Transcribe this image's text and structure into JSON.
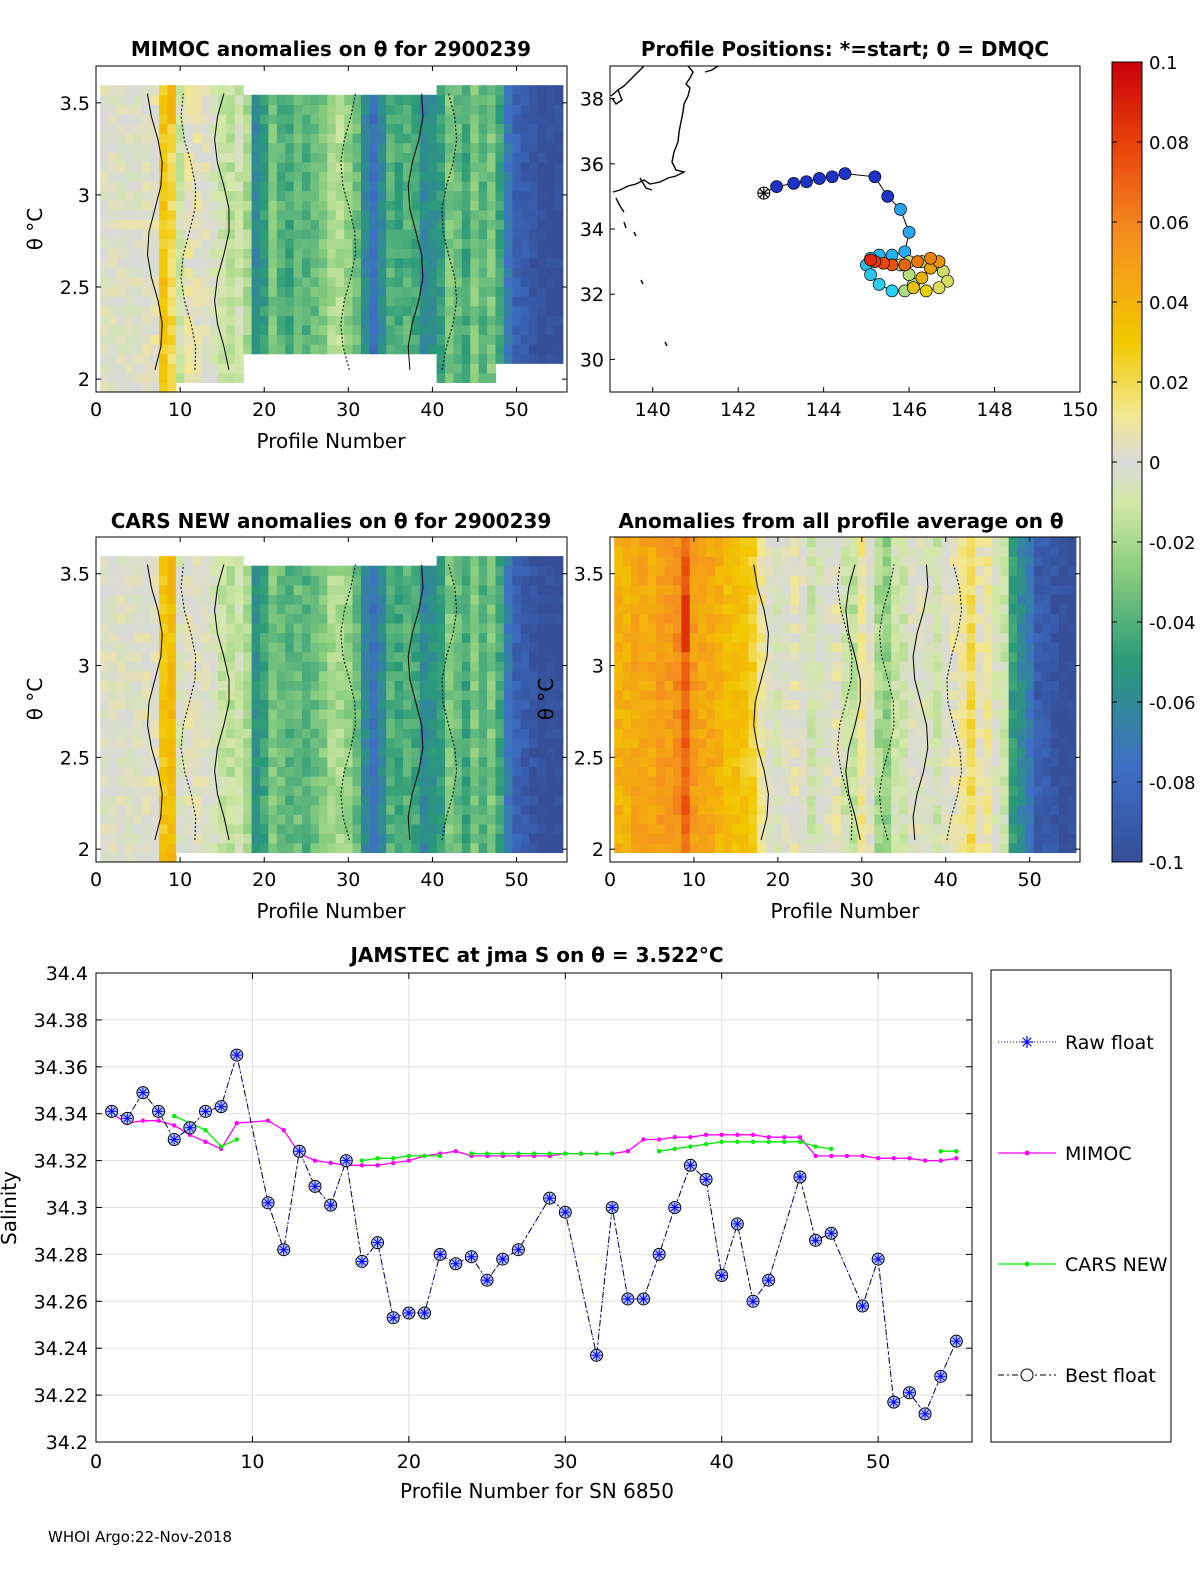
{
  "footer": "WHOI Argo:22-Nov-2018",
  "panels": {
    "mimoc": {
      "title": "MIMOC anomalies on θ  for 2900239",
      "xlabel": "Profile Number",
      "ylabel": "θ °C"
    },
    "positions": {
      "title": "Profile Positions: *=start; 0 = DMQC"
    },
    "cars": {
      "title": "CARS NEW anomalies on θ for 2900239",
      "xlabel": "Profile Number",
      "ylabel": "θ °C"
    },
    "allavg": {
      "title": "Anomalies from all profile average on θ",
      "xlabel": "Profile Number",
      "ylabel": "θ °C"
    }
  },
  "colors": {
    "raw": "#0000ff",
    "mimoc": "#ff00ff",
    "cars": "#00ee00",
    "best": "#000000",
    "marker_fill": "#b8c8ff"
  },
  "chart_data": [
    {
      "type": "heatmap",
      "name": "mimoc",
      "title": "MIMOC anomalies on θ  for 2900239",
      "xlabel": "Profile Number",
      "ylabel": "θ °C",
      "xlim": [
        0,
        56
      ],
      "ylim": [
        1.93,
        3.7
      ],
      "xticks": [
        "0",
        "10",
        "20",
        "30",
        "40",
        "50"
      ],
      "yticks": [
        "2",
        "2.5",
        "3",
        "3.5"
      ],
      "column_anomalies": [
        0,
        0,
        0,
        0,
        0,
        0.002,
        0.004,
        0.03,
        0.02,
        -0.01,
        0.006,
        0.004,
        0.002,
        -0.005,
        -0.012,
        -0.015,
        -0.01,
        -0.02,
        -0.06,
        -0.05,
        -0.03,
        -0.04,
        -0.045,
        -0.035,
        -0.04,
        -0.035,
        -0.03,
        -0.02,
        -0.018,
        -0.025,
        -0.035,
        -0.06,
        -0.075,
        -0.06,
        -0.04,
        -0.045,
        -0.04,
        -0.045,
        -0.06,
        -0.055,
        -0.05,
        -0.03,
        -0.035,
        -0.045,
        -0.03,
        -0.04,
        -0.03,
        -0.045,
        -0.07,
        -0.085,
        -0.09,
        -0.095,
        -0.1,
        -0.1,
        -0.1
      ]
    },
    {
      "type": "scatter",
      "name": "positions",
      "title": "Profile Positions: *=start; 0 = DMQC",
      "xlim": [
        139,
        150
      ],
      "ylim": [
        29,
        39
      ],
      "xticks": [
        "140",
        "142",
        "144",
        "146",
        "148",
        "150"
      ],
      "yticks": [
        "30",
        "32",
        "34",
        "36",
        "38"
      ],
      "start": [
        142.6,
        35.1
      ],
      "track": [
        [
          142.9,
          35.3
        ],
        [
          143.3,
          35.4
        ],
        [
          143.6,
          35.45
        ],
        [
          143.9,
          35.55
        ],
        [
          144.2,
          35.6
        ],
        [
          144.5,
          35.7
        ],
        [
          145.2,
          35.6
        ],
        [
          145.5,
          35.0
        ],
        [
          145.8,
          34.6
        ],
        [
          146.0,
          33.9
        ],
        [
          145.9,
          33.3
        ],
        [
          145.6,
          33.2
        ],
        [
          145.3,
          33.2
        ],
        [
          145.1,
          33.1
        ],
        [
          145.0,
          32.9
        ],
        [
          145.1,
          32.6
        ],
        [
          145.3,
          32.3
        ],
        [
          145.6,
          32.1
        ],
        [
          145.9,
          32.1
        ],
        [
          146.1,
          32.3
        ],
        [
          146.0,
          32.6
        ],
        [
          145.8,
          32.9
        ],
        [
          146.0,
          33.0
        ],
        [
          146.3,
          33.0
        ],
        [
          146.6,
          32.9
        ],
        [
          146.8,
          32.7
        ],
        [
          146.9,
          32.4
        ],
        [
          146.7,
          32.2
        ],
        [
          146.4,
          32.1
        ],
        [
          146.1,
          32.2
        ],
        [
          146.3,
          32.5
        ],
        [
          146.5,
          32.8
        ],
        [
          146.7,
          33.0
        ],
        [
          146.5,
          33.1
        ],
        [
          146.2,
          33.0
        ],
        [
          145.9,
          32.9
        ],
        [
          145.6,
          32.9
        ],
        [
          145.4,
          32.95
        ],
        [
          145.2,
          33.0
        ],
        [
          145.1,
          33.05
        ]
      ],
      "colorbar": {
        "min": -0.1,
        "max": 0.1,
        "ticks": [
          "0.1",
          "0.08",
          "0.06",
          "0.04",
          "0.02",
          "0",
          "-0.02",
          "-0.04",
          "-0.06",
          "-0.08",
          "-0.1"
        ]
      }
    },
    {
      "type": "heatmap",
      "name": "cars",
      "title": "CARS NEW anomalies on θ for 2900239",
      "xlabel": "Profile Number",
      "ylabel": "θ °C",
      "xlim": [
        0,
        56
      ],
      "ylim": [
        1.93,
        3.7
      ],
      "xticks": [
        "0",
        "10",
        "20",
        "30",
        "40",
        "50"
      ],
      "yticks": [
        "2",
        "2.5",
        "3",
        "3.5"
      ],
      "column_anomalies": [
        0,
        0,
        0,
        0,
        0,
        0.002,
        0.004,
        0.03,
        0.035,
        -0.005,
        0.003,
        0.002,
        0,
        -0.006,
        -0.012,
        -0.015,
        -0.01,
        -0.02,
        -0.055,
        -0.045,
        -0.03,
        -0.035,
        -0.04,
        -0.035,
        -0.04,
        -0.035,
        -0.03,
        -0.02,
        -0.02,
        -0.025,
        -0.035,
        -0.06,
        -0.075,
        -0.06,
        -0.04,
        -0.045,
        -0.04,
        -0.045,
        -0.06,
        -0.055,
        -0.05,
        -0.03,
        -0.035,
        -0.045,
        -0.03,
        -0.04,
        -0.03,
        -0.045,
        -0.07,
        -0.085,
        -0.09,
        -0.095,
        -0.1,
        -0.1,
        -0.1
      ]
    },
    {
      "type": "heatmap",
      "name": "allavg",
      "title": "Anomalies from all profile average on θ",
      "xlabel": "Profile Number",
      "ylabel": "θ °C",
      "xlim": [
        0,
        56
      ],
      "ylim": [
        1.93,
        3.7
      ],
      "xticks": [
        "0",
        "10",
        "20",
        "30",
        "40",
        "50"
      ],
      "yticks": [
        "2",
        "2.5",
        "3",
        "3.5"
      ],
      "column_anomalies": [
        0.04,
        0.04,
        0.045,
        0.045,
        0.045,
        0.05,
        0.05,
        0.055,
        0.07,
        0.05,
        0.045,
        0.045,
        0.04,
        0.035,
        0.035,
        0.03,
        0.025,
        0.01,
        0,
        -0.005,
        0,
        0.005,
        0,
        -0.01,
        -0.005,
        0,
        0.005,
        -0.01,
        -0.015,
        0.01,
        0,
        -0.02,
        -0.025,
        -0.01,
        -0.01,
        0,
        0,
        -0.005,
        -0.01,
        0,
        0.005,
        0.01,
        0.02,
        0.005,
        0.01,
        -0.005,
        -0.01,
        -0.05,
        -0.06,
        -0.07,
        -0.09,
        -0.09,
        -0.095,
        -0.1,
        -0.1
      ]
    },
    {
      "type": "line",
      "name": "salinity",
      "title": "JAMSTEC at jma S on θ = 3.522°C",
      "xlabel": "Profile Number for SN 6850",
      "ylabel": "Salinity",
      "xlim": [
        0,
        56
      ],
      "ylim": [
        34.2,
        34.4
      ],
      "xticks": [
        "0",
        "10",
        "20",
        "30",
        "40",
        "50"
      ],
      "yticks": [
        "34.2",
        "34.22",
        "34.24",
        "34.26",
        "34.28",
        "34.3",
        "34.32",
        "34.34",
        "34.36",
        "34.38",
        "34.4"
      ],
      "legend": [
        "Raw float",
        "MIMOC",
        "CARS NEW",
        "Best float"
      ],
      "series": [
        {
          "name": "Best float",
          "x": [
            1,
            2,
            3,
            4,
            5,
            6,
            7,
            8,
            9,
            11,
            12,
            13,
            14,
            15,
            16,
            17,
            18,
            19,
            20,
            21,
            22,
            23,
            24,
            25,
            26,
            27,
            29,
            30,
            32,
            33,
            34,
            35,
            36,
            37,
            38,
            39,
            40,
            41,
            42,
            43,
            45,
            46,
            47,
            49,
            50,
            51,
            52,
            53,
            54,
            55
          ],
          "values": [
            34.341,
            34.338,
            34.349,
            34.341,
            34.329,
            34.334,
            34.341,
            34.343,
            34.365,
            34.302,
            34.282,
            34.324,
            34.309,
            34.301,
            34.32,
            34.277,
            34.285,
            34.253,
            34.255,
            34.255,
            34.28,
            34.276,
            34.279,
            34.269,
            34.278,
            34.282,
            34.304,
            34.298,
            34.237,
            34.3,
            34.261,
            34.261,
            34.28,
            34.3,
            34.318,
            34.312,
            34.271,
            34.293,
            34.26,
            34.269,
            34.313,
            34.286,
            34.289,
            34.258,
            34.278,
            34.217,
            34.221,
            34.212,
            34.228,
            34.243
          ]
        },
        {
          "name": "MIMOC",
          "x": [
            1,
            2,
            3,
            4,
            5,
            6,
            7,
            8,
            9,
            11,
            12,
            13,
            14,
            15,
            16,
            17,
            18,
            19,
            20,
            21,
            22,
            23,
            24,
            25,
            26,
            27,
            28,
            29,
            30,
            31,
            32,
            33,
            34,
            35,
            36,
            37,
            38,
            39,
            40,
            41,
            42,
            43,
            44,
            45,
            46,
            47,
            48,
            49,
            50,
            51,
            52,
            53,
            54,
            55
          ],
          "values": [
            34.34,
            34.336,
            34.337,
            34.337,
            34.335,
            34.331,
            34.328,
            34.325,
            34.336,
            34.337,
            34.333,
            34.323,
            34.32,
            34.319,
            34.318,
            34.318,
            34.318,
            34.319,
            34.32,
            34.322,
            34.323,
            34.324,
            34.322,
            34.322,
            34.322,
            34.322,
            34.322,
            34.322,
            34.323,
            34.323,
            34.323,
            34.323,
            34.324,
            34.329,
            34.329,
            34.33,
            34.33,
            34.331,
            34.331,
            34.331,
            34.331,
            34.33,
            34.33,
            34.33,
            34.322,
            34.322,
            34.322,
            34.322,
            34.321,
            34.321,
            34.321,
            34.32,
            34.32,
            34.321
          ]
        },
        {
          "name": "CARS NEW",
          "x": [
            5,
            6,
            7,
            8,
            9,
            17,
            18,
            19,
            20,
            21,
            22,
            24,
            25,
            26,
            27,
            28,
            29,
            30,
            31,
            32,
            33,
            36,
            37,
            38,
            39,
            40,
            41,
            42,
            43,
            44,
            45,
            46,
            47,
            54,
            55
          ],
          "values": [
            34.339,
            34.336,
            34.333,
            34.326,
            34.329,
            34.32,
            34.321,
            34.321,
            34.322,
            34.322,
            34.322,
            34.323,
            34.323,
            34.323,
            34.323,
            34.323,
            34.323,
            34.323,
            34.323,
            34.323,
            34.323,
            34.324,
            34.325,
            34.326,
            34.327,
            34.328,
            34.328,
            34.328,
            34.328,
            34.328,
            34.328,
            34.326,
            34.325,
            34.324,
            34.324
          ]
        }
      ]
    }
  ]
}
